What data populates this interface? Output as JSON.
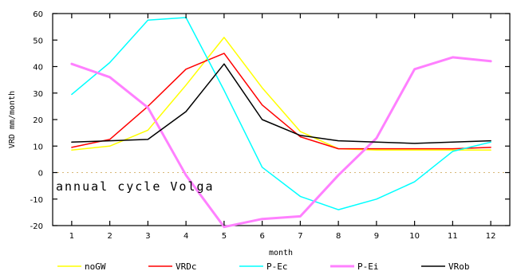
{
  "chart_data": {
    "type": "line",
    "title": "",
    "xlabel": "month",
    "ylabel": "VRD mm/month",
    "annotation": "annual cycle Volga",
    "x": [
      1,
      2,
      3,
      4,
      5,
      6,
      7,
      8,
      9,
      10,
      11,
      12
    ],
    "xlim": [
      0.5,
      12.5
    ],
    "ylim": [
      -20,
      60
    ],
    "yticks": [
      -20,
      -10,
      0,
      10,
      20,
      30,
      40,
      50,
      60
    ],
    "zero_line": true,
    "grid": false,
    "legend_position": "bottom",
    "series": [
      {
        "name": "noGW",
        "color": "#ffff00",
        "width": 1.5,
        "values": [
          8.5,
          10,
          16,
          33,
          51,
          32,
          15.5,
          9,
          8.5,
          8.5,
          8.5,
          8.5
        ]
      },
      {
        "name": "VRDc",
        "color": "#ff0000",
        "width": 1.5,
        "values": [
          9.5,
          12.5,
          25,
          39,
          45,
          25.5,
          13.5,
          9,
          9,
          9,
          9,
          9.5
        ]
      },
      {
        "name": "P-Ec",
        "color": "#00ffff",
        "width": 1.5,
        "values": [
          29.5,
          41.5,
          57.5,
          58.5,
          31,
          2,
          -9,
          -14,
          -10,
          -3.5,
          8,
          11.5
        ]
      },
      {
        "name": "P-Ei",
        "color": "#ff80ff",
        "width": 3,
        "values": [
          41,
          36,
          24.5,
          -1,
          -20.5,
          -17.5,
          -16.5,
          -1,
          13,
          39,
          43.5,
          42
        ]
      },
      {
        "name": "VRob",
        "color": "#000000",
        "width": 1.5,
        "values": [
          11.5,
          12,
          12.5,
          23,
          41,
          20,
          14,
          12,
          11.5,
          11,
          11.5,
          12
        ]
      }
    ]
  }
}
